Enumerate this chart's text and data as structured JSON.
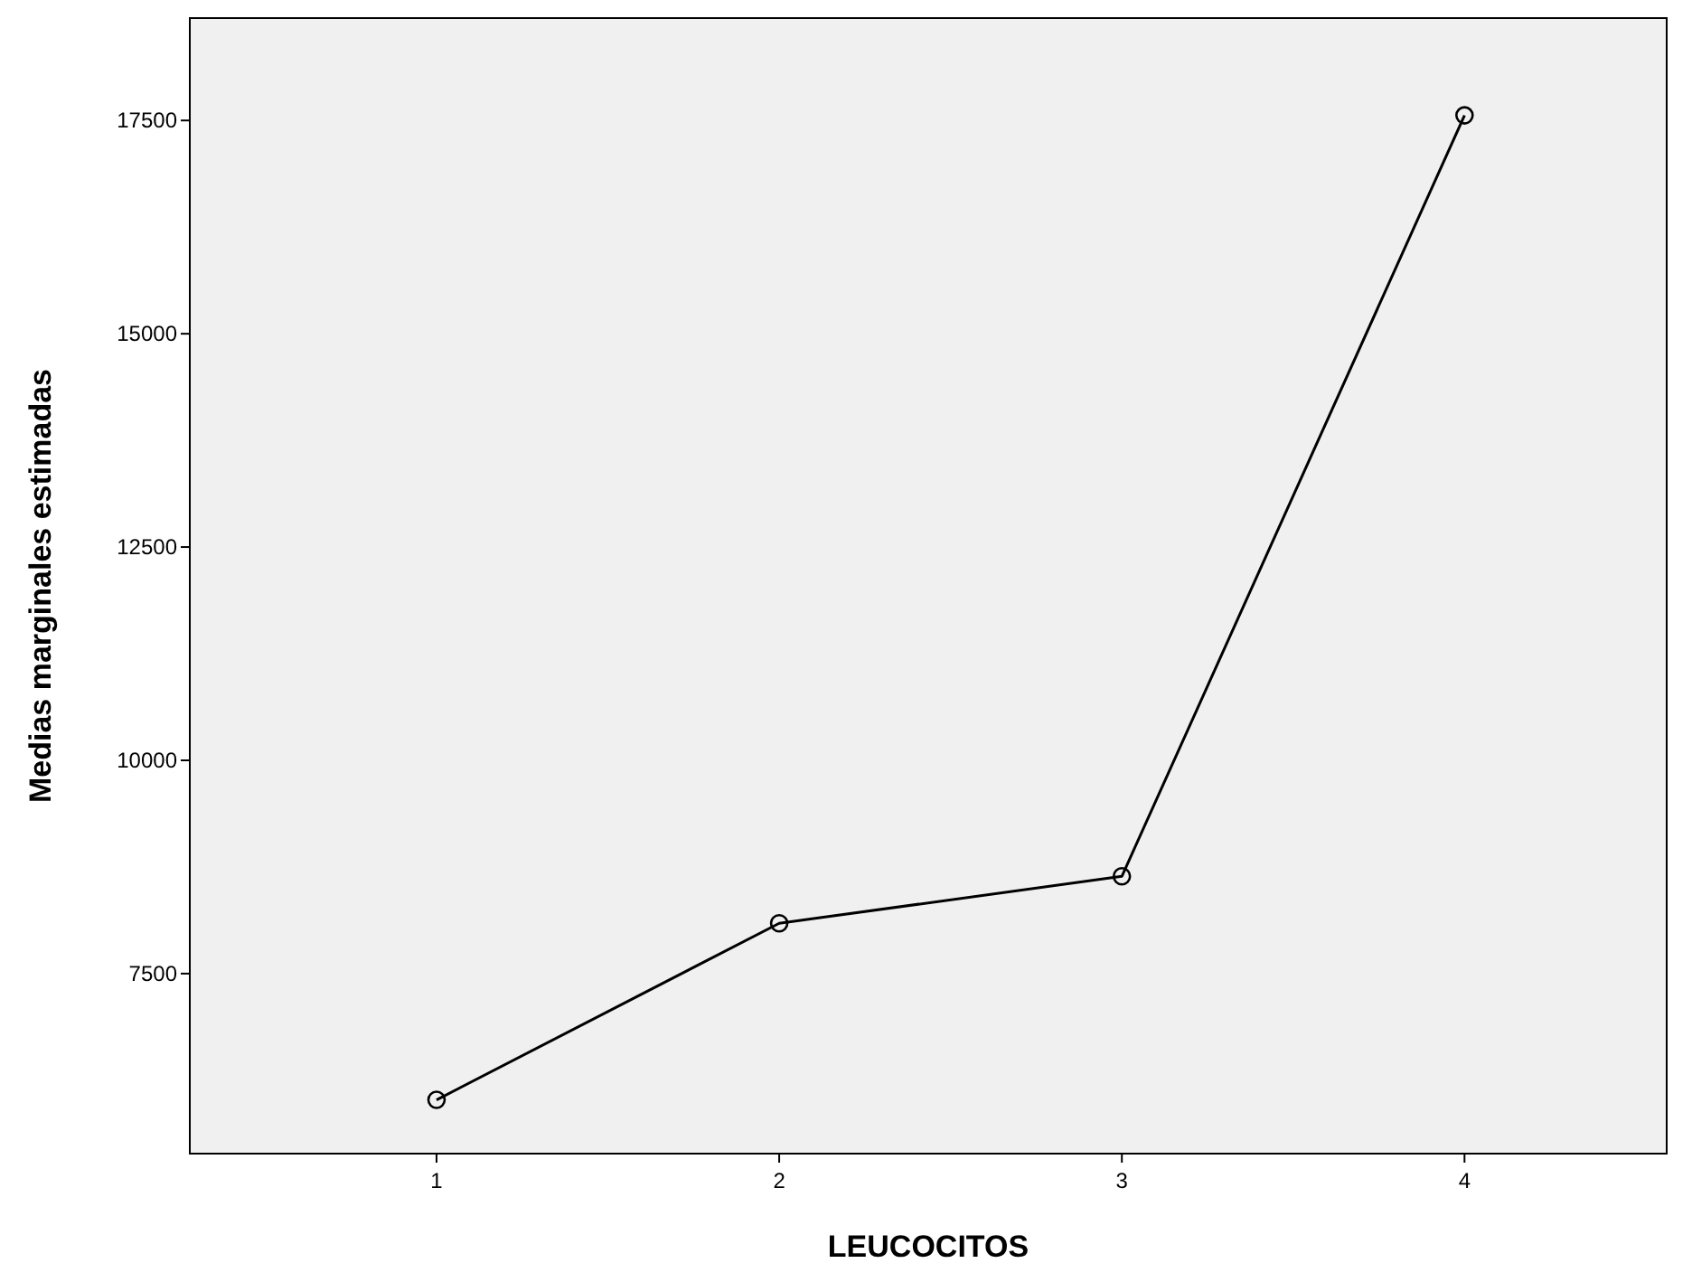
{
  "chart_data": {
    "type": "line",
    "xlabel": "LEUCOCITOS",
    "ylabel": "Medias marginales estimadas",
    "x": [
      1,
      2,
      3,
      4
    ],
    "series": [
      {
        "color": "#000000",
        "values": [
          6020,
          8090,
          8640,
          17560
        ]
      }
    ],
    "xlim": [
      0.28,
      4.59
    ],
    "xticks": [
      1,
      2,
      3,
      4
    ],
    "ylim": [
      5390,
      18700
    ],
    "yticks": [
      7500,
      10000,
      12500,
      15000,
      17500
    ],
    "marker": "circle",
    "line_style": "solid",
    "grid": false
  }
}
